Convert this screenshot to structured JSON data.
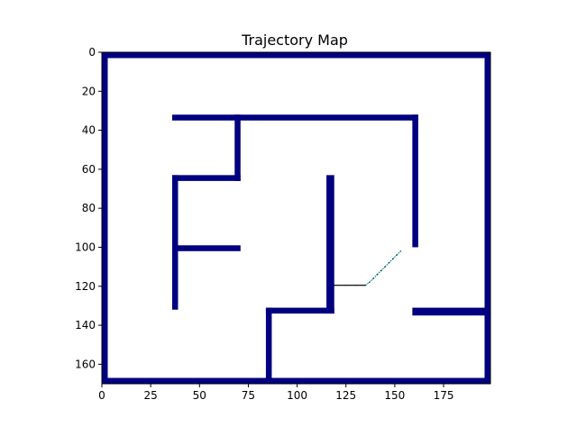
{
  "chart_data": {
    "type": "heatmap",
    "title": "Trajectory Map",
    "xlabel": "",
    "ylabel": "",
    "xlim": [
      0,
      199
    ],
    "ylim": [
      170,
      0
    ],
    "x_ticks": [
      0,
      25,
      50,
      75,
      100,
      125,
      150,
      175
    ],
    "y_ticks": [
      0,
      20,
      40,
      60,
      80,
      100,
      120,
      140,
      160
    ],
    "grid": false,
    "wall_color": "#000080",
    "free_color": "#ffffff",
    "walls": [
      {
        "name": "outer-top",
        "x0": 0,
        "x1": 199,
        "y0": 0,
        "y1": 3
      },
      {
        "name": "outer-bottom",
        "x0": 0,
        "x1": 199,
        "y0": 167,
        "y1": 170
      },
      {
        "name": "outer-left",
        "x0": 0,
        "x1": 3,
        "y0": 0,
        "y1": 170
      },
      {
        "name": "outer-right",
        "x0": 196,
        "x1": 199,
        "y0": 0,
        "y1": 170
      },
      {
        "name": "inner-top-horizontal",
        "x0": 36,
        "x1": 162,
        "y0": 32,
        "y1": 35
      },
      {
        "name": "inner-short-vertical",
        "x0": 68,
        "x1": 71,
        "y0": 32,
        "y1": 66
      },
      {
        "name": "f-middle-horizontal",
        "x0": 36,
        "x1": 71,
        "y0": 63,
        "y1": 66
      },
      {
        "name": "f-left-vertical",
        "x0": 36,
        "x1": 39,
        "y0": 63,
        "y1": 132
      },
      {
        "name": "f-lower-arm",
        "x0": 36,
        "x1": 71,
        "y0": 99,
        "y1": 102
      },
      {
        "name": "right-inner-vertical",
        "x0": 159,
        "x1": 162,
        "y0": 32,
        "y1": 100
      },
      {
        "name": "center-vertical",
        "x0": 115,
        "x1": 119,
        "y0": 63,
        "y1": 134
      },
      {
        "name": "center-lower-horizontal",
        "x0": 84,
        "x1": 119,
        "y0": 131,
        "y1": 134
      },
      {
        "name": "bottom-vertical",
        "x0": 84,
        "x1": 87,
        "y0": 131,
        "y1": 170
      },
      {
        "name": "right-lower-horizontal",
        "x0": 159,
        "x1": 199,
        "y0": 131,
        "y1": 135
      }
    ],
    "trajectory": [
      [
        119,
        119.5
      ],
      [
        125,
        119.5
      ],
      [
        130,
        119.5
      ],
      [
        135,
        119.5
      ],
      [
        137,
        118
      ],
      [
        139,
        116
      ],
      [
        141,
        114
      ],
      [
        143,
        112
      ],
      [
        145,
        110
      ],
      [
        147,
        108
      ],
      [
        149,
        106
      ],
      [
        151,
        104
      ],
      [
        153,
        102
      ]
    ],
    "trajectory_colors": [
      "#000000",
      "#008b8b"
    ]
  }
}
